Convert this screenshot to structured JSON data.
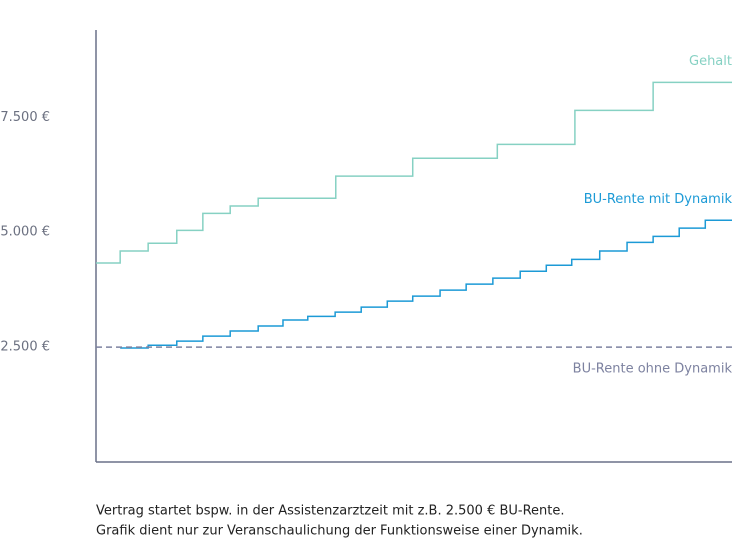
{
  "chart_data": {
    "type": "step",
    "xlim": [
      0,
      100
    ],
    "ylim": [
      0,
      9400
    ],
    "yticks": [
      {
        "value": 2500,
        "label": "2.500 €"
      },
      {
        "value": 5000,
        "label": "5.000 €"
      },
      {
        "value": 7500,
        "label": "7.500 €"
      }
    ],
    "series": [
      {
        "name": "Gehalt",
        "color": "#86d1c3",
        "dashed": false,
        "x": [
          0,
          3.8,
          8.2,
          12.7,
          16.8,
          21.1,
          25.5,
          37.7,
          49.8,
          63.1,
          75.3,
          87.6,
          100
        ],
        "values": [
          4330,
          4590,
          4760,
          5040,
          5410,
          5570,
          5740,
          6220,
          6610,
          6910,
          7650,
          8260,
          8260
        ]
      },
      {
        "name": "BU-Rente mit Dynamik",
        "color": "#1c9ad6",
        "dashed": false,
        "x": [
          3.8,
          8.2,
          12.7,
          16.8,
          21.1,
          25.5,
          29.4,
          33.3,
          37.6,
          41.7,
          45.8,
          49.8,
          54.1,
          58.2,
          62.4,
          66.7,
          70.8,
          74.8,
          79.2,
          83.5,
          87.6,
          91.7,
          95.8,
          100
        ],
        "values": [
          2480,
          2540,
          2630,
          2740,
          2850,
          2960,
          3090,
          3170,
          3260,
          3370,
          3500,
          3610,
          3740,
          3870,
          4000,
          4150,
          4280,
          4410,
          4590,
          4780,
          4910,
          5090,
          5260,
          5260
        ]
      },
      {
        "name": "BU-Rente ohne Dynamik",
        "color": "#7d82a0",
        "dashed": true,
        "x": [
          0,
          100
        ],
        "values": [
          2500,
          2500
        ]
      }
    ]
  },
  "notes": [
    "Vertrag startet bspw. in der Assistenzarztzeit mit z.B. 2.500 € BU-Rente.",
    "Grafik dient nur zur Veranschaulichung der Funktionsweise einer Dynamik."
  ]
}
